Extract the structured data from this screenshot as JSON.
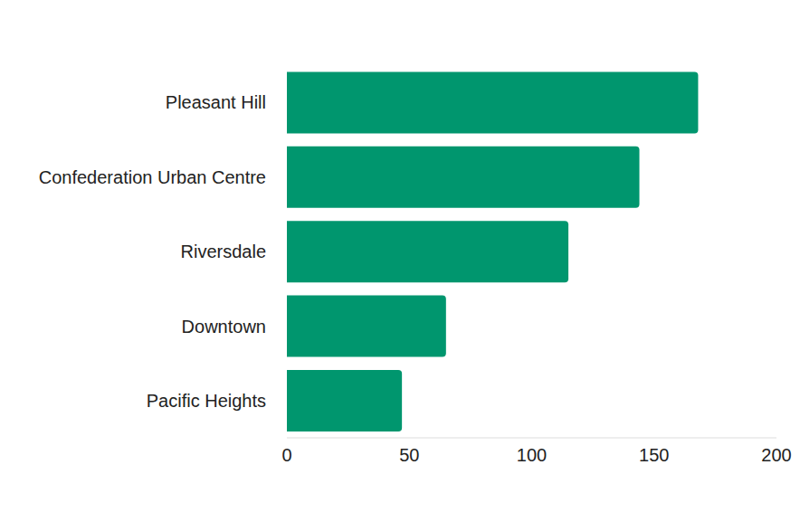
{
  "chart_data": {
    "type": "bar",
    "orientation": "horizontal",
    "categories": [
      "Pleasant Hill",
      "Confederation Urban Centre",
      "Riversdale",
      "Downtown",
      "Pacific Heights"
    ],
    "values": [
      168,
      144,
      115,
      65,
      47
    ],
    "color": "#00966e",
    "xlim": [
      0,
      200
    ],
    "xticks": [
      0,
      50,
      100,
      150,
      200
    ],
    "grid": false
  }
}
